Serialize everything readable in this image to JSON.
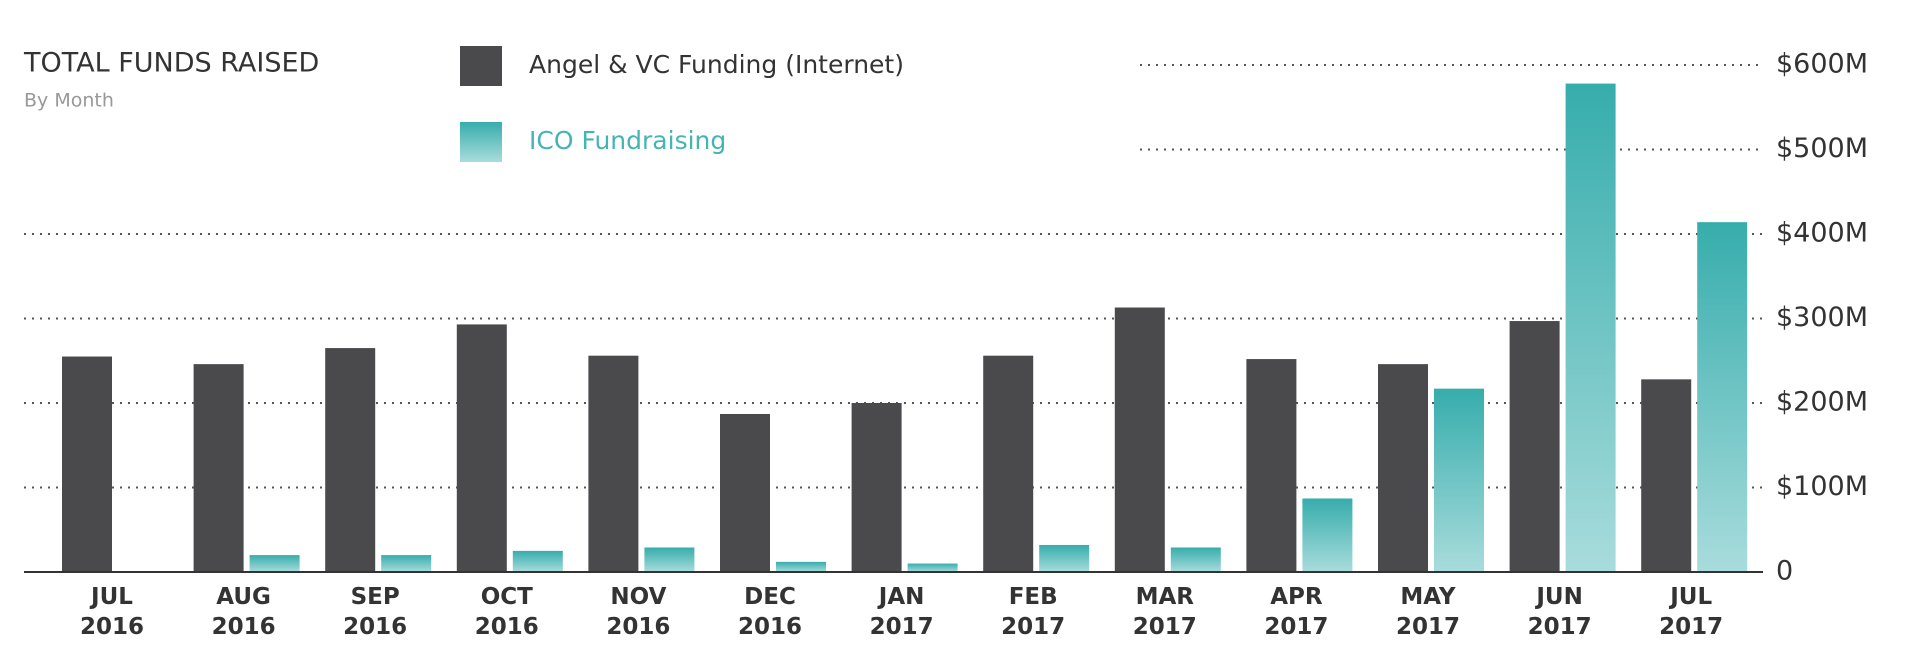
{
  "chart_data": {
    "type": "bar",
    "title": "TOTAL FUNDS RAISED",
    "subtitle": "By Month",
    "categories": [
      "JUL 2016",
      "AUG 2016",
      "SEP 2016",
      "OCT 2016",
      "NOV 2016",
      "DEC 2016",
      "JAN 2017",
      "FEB 2017",
      "MAR 2017",
      "APR 2017",
      "MAY 2017",
      "JUN 2017",
      "JUL 2017"
    ],
    "series": [
      {
        "name": "Angel & VC Funding (Internet)",
        "color": "#4a4a4c",
        "values": [
          255,
          246,
          265,
          293,
          256,
          187,
          200,
          256,
          313,
          252,
          246,
          297,
          228
        ]
      },
      {
        "name": "ICO Fundraising",
        "color": "#45b5b4",
        "values": [
          0,
          20,
          20,
          25,
          29,
          12,
          10,
          32,
          29,
          87,
          217,
          578,
          414
        ]
      }
    ],
    "ylim": [
      0,
      600
    ],
    "yticks": [
      0,
      {
        "value": 100,
        "label": "$100M"
      },
      {
        "value": 200,
        "label": "$200M"
      },
      {
        "value": 300,
        "label": "$300M"
      },
      {
        "value": 400,
        "label": "$400M"
      },
      {
        "value": 500,
        "label": "$500M"
      },
      {
        "value": 600,
        "label": "$600M"
      }
    ],
    "grid": true
  }
}
